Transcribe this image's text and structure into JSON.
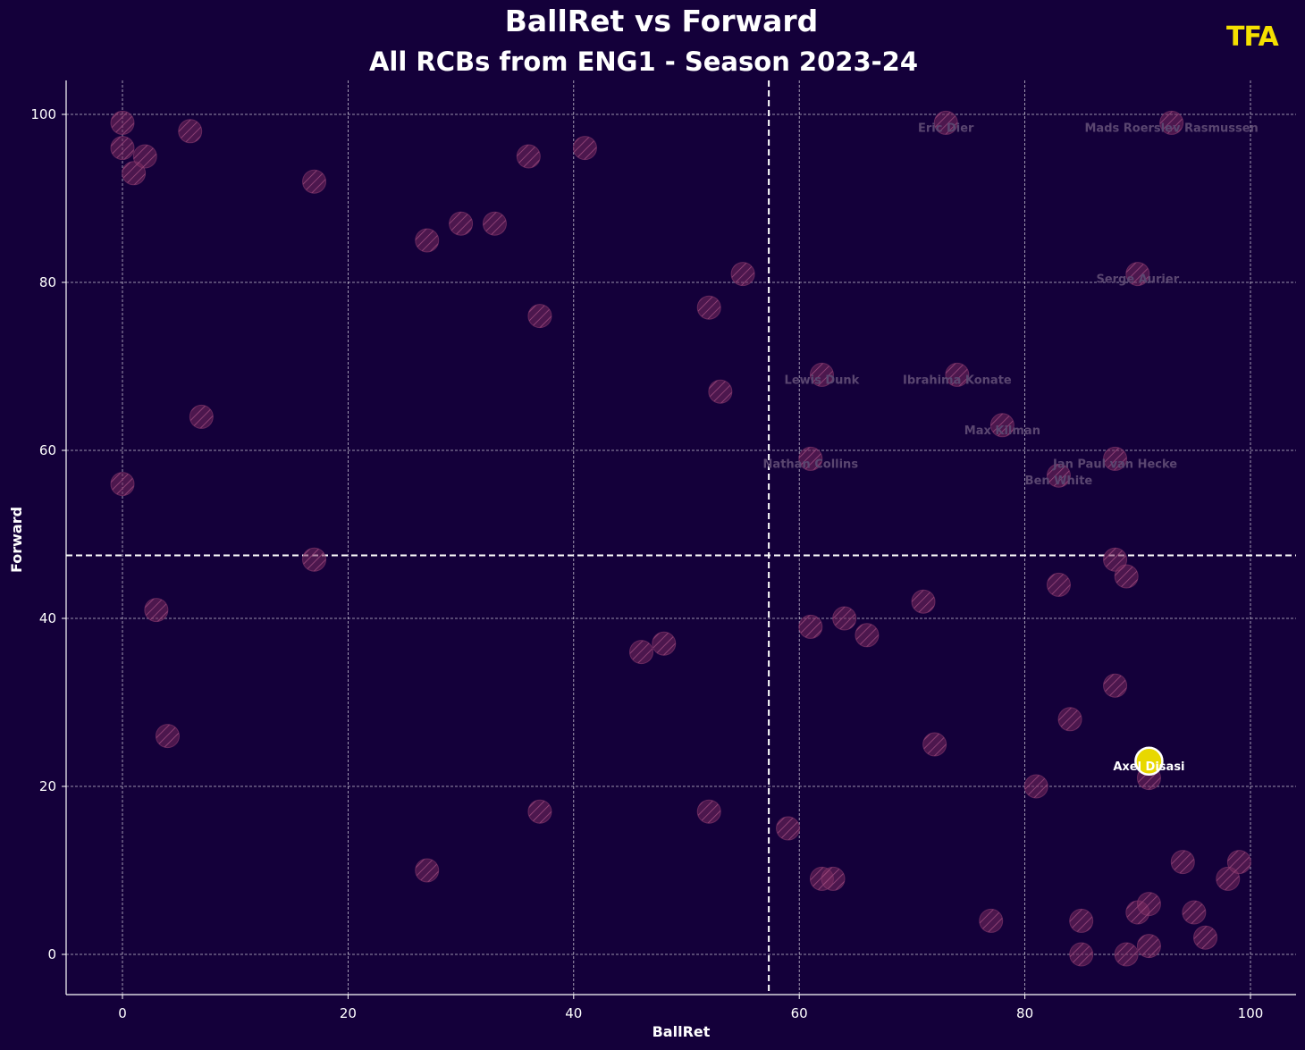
{
  "header": {
    "title": "BallRet vs Forward",
    "subtitle": "All RCBs from ENG1 - Season 2023-24",
    "logo_text": "TFA"
  },
  "colors": {
    "background": "#14003a",
    "point": "#7a2a5e",
    "highlight": "#e8d800",
    "grid": "#ffffff",
    "logo": "#f5e000"
  },
  "chart_data": {
    "type": "scatter",
    "title": "BallRet vs Forward",
    "subtitle": "All RCBs from ENG1 - Season 2023-24",
    "xlabel": "BallRet",
    "ylabel": "Forward",
    "xlim": [
      -5,
      104
    ],
    "ylim": [
      -5,
      104
    ],
    "xticks": [
      0,
      20,
      40,
      60,
      80,
      100
    ],
    "yticks": [
      0,
      20,
      40,
      60,
      80,
      100
    ],
    "grid": true,
    "reference_lines": {
      "x": 57.3,
      "y": 47.5
    },
    "points": [
      {
        "x": 0,
        "y": 99
      },
      {
        "x": 0,
        "y": 96
      },
      {
        "x": 1,
        "y": 93
      },
      {
        "x": 2,
        "y": 95
      },
      {
        "x": 6,
        "y": 98
      },
      {
        "x": 17,
        "y": 92
      },
      {
        "x": 0,
        "y": 56
      },
      {
        "x": 7,
        "y": 64
      },
      {
        "x": 17,
        "y": 47
      },
      {
        "x": 3,
        "y": 41
      },
      {
        "x": 4,
        "y": 26
      },
      {
        "x": 27,
        "y": 85
      },
      {
        "x": 30,
        "y": 87
      },
      {
        "x": 33,
        "y": 87
      },
      {
        "x": 36,
        "y": 95
      },
      {
        "x": 41,
        "y": 96
      },
      {
        "x": 37,
        "y": 76
      },
      {
        "x": 27,
        "y": 10
      },
      {
        "x": 37,
        "y": 17
      },
      {
        "x": 46,
        "y": 36
      },
      {
        "x": 48,
        "y": 37
      },
      {
        "x": 52,
        "y": 77
      },
      {
        "x": 53,
        "y": 67
      },
      {
        "x": 55,
        "y": 81
      },
      {
        "x": 52,
        "y": 17
      },
      {
        "x": 59,
        "y": 15
      },
      {
        "x": 61,
        "y": 39
      },
      {
        "x": 64,
        "y": 40
      },
      {
        "x": 66,
        "y": 38
      },
      {
        "x": 71,
        "y": 42
      },
      {
        "x": 62,
        "y": 9
      },
      {
        "x": 63,
        "y": 9
      },
      {
        "x": 72,
        "y": 25
      },
      {
        "x": 77,
        "y": 4
      },
      {
        "x": 81,
        "y": 20
      },
      {
        "x": 83,
        "y": 44
      },
      {
        "x": 84,
        "y": 28
      },
      {
        "x": 85,
        "y": 4
      },
      {
        "x": 85,
        "y": 0
      },
      {
        "x": 88,
        "y": 47
      },
      {
        "x": 89,
        "y": 45
      },
      {
        "x": 88,
        "y": 32
      },
      {
        "x": 89,
        "y": 0
      },
      {
        "x": 90,
        "y": 5
      },
      {
        "x": 91,
        "y": 6
      },
      {
        "x": 91,
        "y": 1
      },
      {
        "x": 91,
        "y": 21
      },
      {
        "x": 94,
        "y": 11
      },
      {
        "x": 95,
        "y": 5
      },
      {
        "x": 96,
        "y": 2
      },
      {
        "x": 98,
        "y": 9
      },
      {
        "x": 99,
        "y": 11
      },
      {
        "x": 73,
        "y": 99,
        "label": "Eric Dier"
      },
      {
        "x": 93,
        "y": 99,
        "label": "Mads Roerslev Rasmussen"
      },
      {
        "x": 90,
        "y": 81,
        "label": "Serge Aurier"
      },
      {
        "x": 62,
        "y": 69,
        "label": "Lewis Dunk"
      },
      {
        "x": 74,
        "y": 69,
        "label": "Ibrahima Konate"
      },
      {
        "x": 78,
        "y": 63,
        "label": "Max Kilman"
      },
      {
        "x": 61,
        "y": 59,
        "label": "Nathan Collins"
      },
      {
        "x": 88,
        "y": 59,
        "label": "Jan Paul van Hecke"
      },
      {
        "x": 83,
        "y": 57,
        "label": "Ben White"
      },
      {
        "x": 91,
        "y": 23,
        "label": "Axel Disasi",
        "highlight": true
      }
    ]
  }
}
